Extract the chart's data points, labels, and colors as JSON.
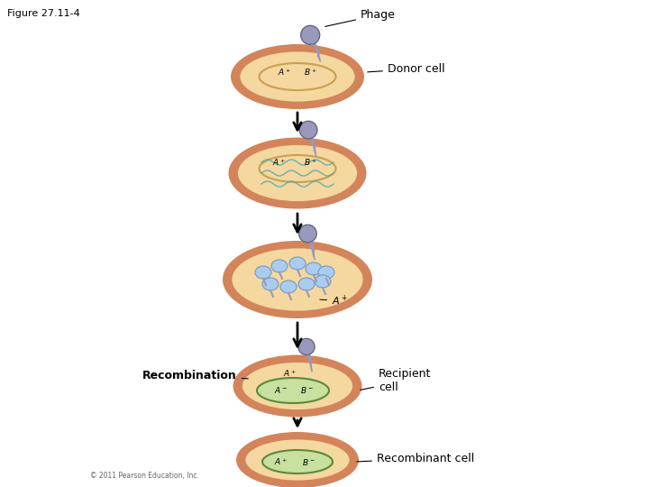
{
  "title": "Figure 27.11-4",
  "bg_color": "#ffffff",
  "cell_outer_color": "#d4845a",
  "cell_inner_color": "#f5d7a0",
  "chromosome_color": "#c8a050",
  "phage_color": "#9999bb",
  "label_donor": "Donor cell",
  "label_phage": "Phage",
  "label_recombination": "Recombination",
  "label_recipient": "Recipient\ncell",
  "label_recombinant": "Recombinant cell",
  "label_figure": "Figure 27.11-4",
  "copyright": "© 2011 Pearson Education, Inc.",
  "arrow_color": "#000000",
  "green_oval_color": "#5a8a3a",
  "green_oval_fill": "#c8e0a0",
  "blue_blob_color": "#7799cc",
  "phage_head_color": "#9999bb",
  "phage_edge_color": "#666688"
}
